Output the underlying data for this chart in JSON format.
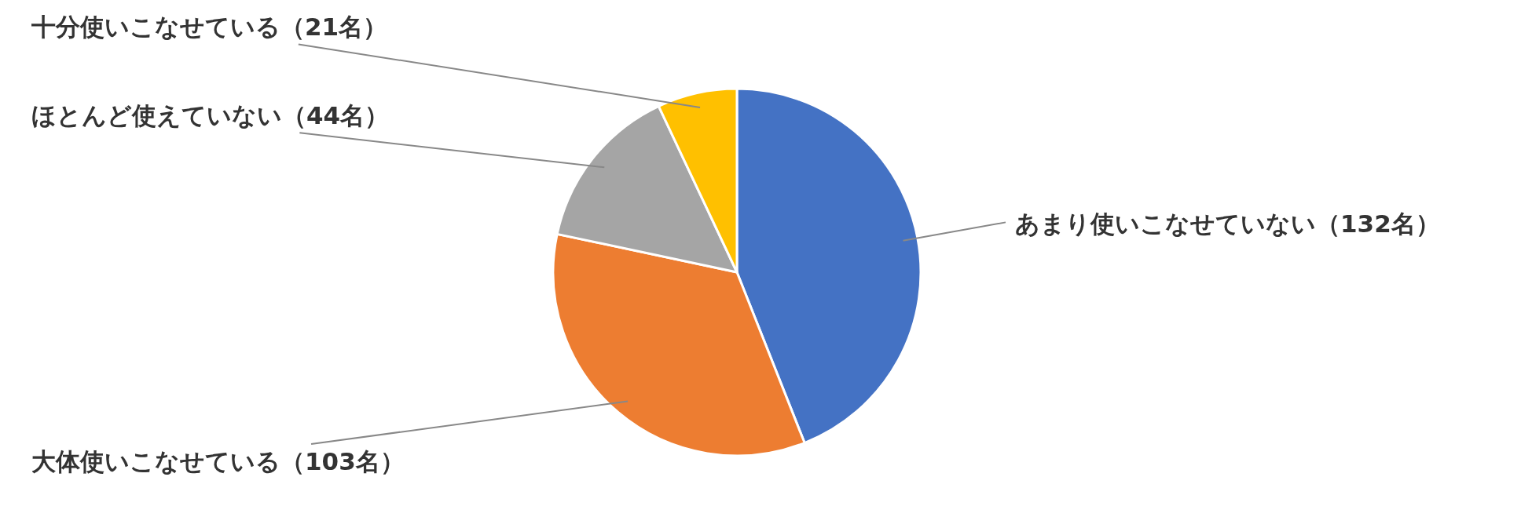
{
  "chart_data": {
    "type": "pie",
    "categories": [
      "あまり使いこなせていない（132名）",
      "大体使いこなせている（103名）",
      "ほとんど使えていない（44名）",
      "十分使いこなせている（21名）"
    ],
    "values": [
      132,
      103,
      44,
      21
    ],
    "colors": [
      "#4472c4",
      "#ed7d31",
      "#a5a5a5",
      "#ffc000"
    ]
  }
}
